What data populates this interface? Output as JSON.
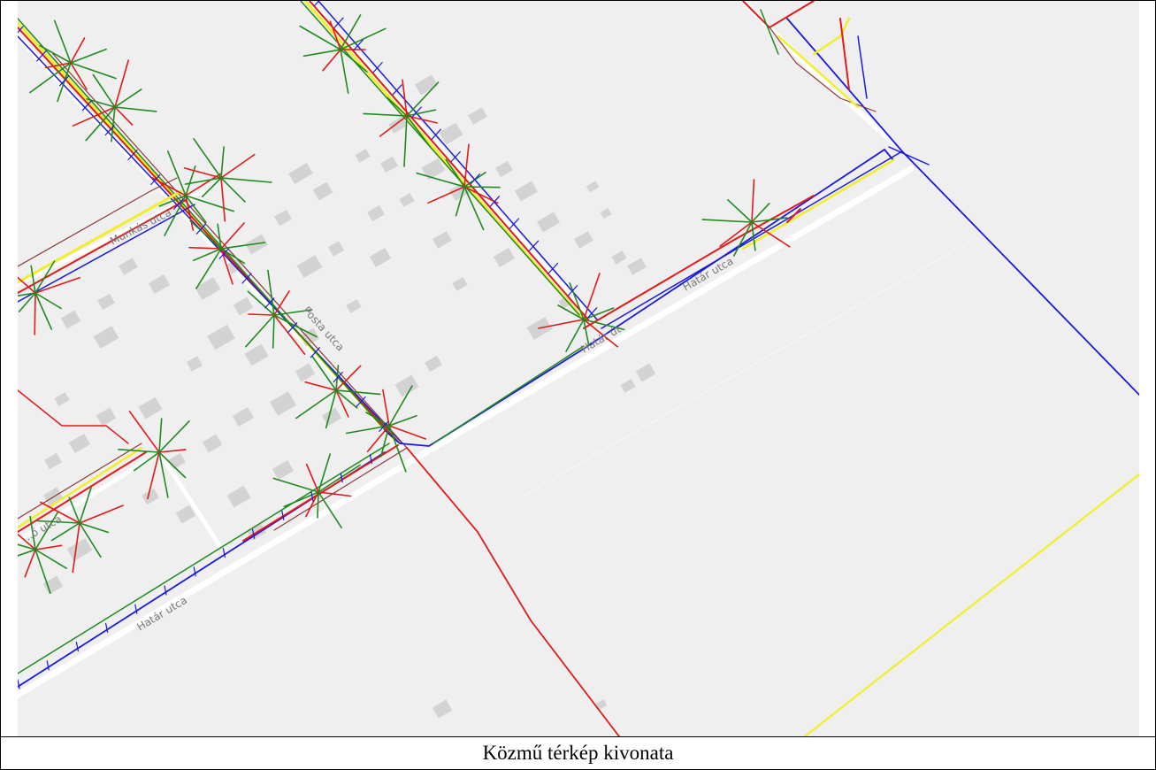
{
  "caption": "Közmű térkép kivonata",
  "street_labels": {
    "munkas": "Munkás utca",
    "posta": "Posta utca",
    "hatar_left": "Határ utca",
    "hatar_mid": "Határ út",
    "hatar_right": "Határ utca",
    "partial_left": "...ő utca"
  },
  "colors": {
    "map_background": "#efefef",
    "building": "#d3d3d3",
    "road": "#ffffff",
    "water_line": "#1a1adf",
    "electric_line": "#e11a1a",
    "telecom_line": "#1f8a1f",
    "gas_line": "#f2ee2a",
    "sewer_line": "#8b3a3a"
  }
}
